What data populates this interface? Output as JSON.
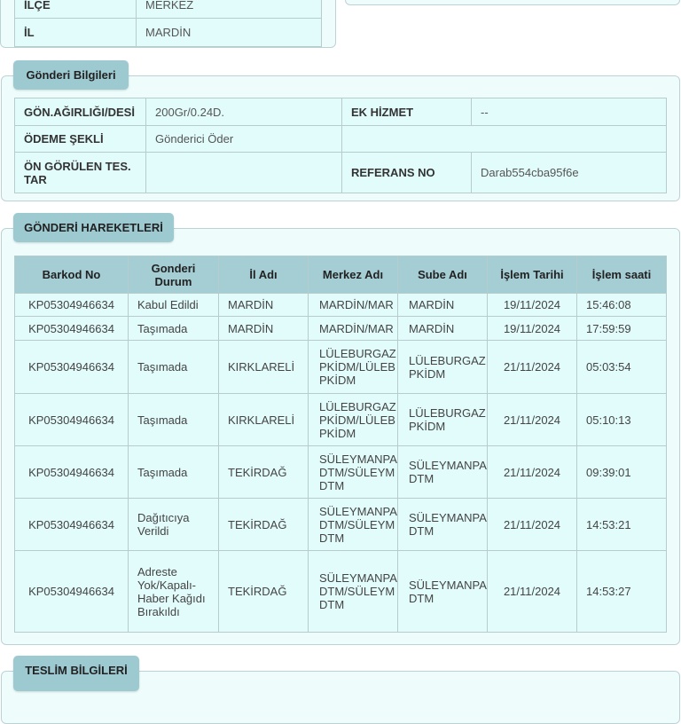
{
  "address_panel": {
    "rows": [
      {
        "label": "İLÇE",
        "value": "MERKEZ"
      },
      {
        "label": "İL",
        "value": "MARDİN"
      }
    ]
  },
  "shipment_info": {
    "title": "Gönderi Bilgileri",
    "weight_label": "GÖN.AĞIRLIĞI/DESİ",
    "weight_value": "200Gr/0.24D.",
    "extra_service_label": "EK HİZMET",
    "extra_service_value": "--",
    "payment_label": "ÖDEME ŞEKLİ",
    "payment_value": "Gönderici Öder",
    "estimated_date_label": "ÖN GÖRÜLEN TES. TAR",
    "estimated_date_value": "",
    "reference_label": "REFERANS NO",
    "reference_value": "Darab554cba95f6e"
  },
  "movements": {
    "title": "GÖNDERİ HAREKETLERİ",
    "columns": [
      "Barkod No",
      "Gonderi Durum",
      "İl Adı",
      "Merkez Adı",
      "Sube Adı",
      "İşlem Tarihi",
      "İşlem saati"
    ],
    "rows": [
      [
        "KP05304946634",
        "Kabul Edildi",
        "MARDİN",
        "MARDİN/MAR",
        "MARDİN",
        "19/11/2024",
        "15:46:08"
      ],
      [
        "KP05304946634",
        "Taşımada",
        "MARDİN",
        "MARDİN/MAR",
        "MARDİN",
        "19/11/2024",
        "17:59:59"
      ],
      [
        "KP05304946634",
        "Taşımada",
        "KIRKLARELİ",
        "LÜLEBURGAZ PKİDM/LÜLEB PKİDM",
        "LÜLEBURGAZ PKİDM",
        "21/11/2024",
        "05:03:54"
      ],
      [
        "KP05304946634",
        "Taşımada",
        "KIRKLARELİ",
        "LÜLEBURGAZ PKİDM/LÜLEB PKİDM",
        "LÜLEBURGAZ PKİDM",
        "21/11/2024",
        "05:10:13"
      ],
      [
        "KP05304946634",
        "Taşımada",
        "TEKİRDAĞ",
        "SÜLEYMANPA DTM/SÜLEYM DTM",
        "SÜLEYMANPA DTM",
        "21/11/2024",
        "09:39:01"
      ],
      [
        "KP05304946634",
        "Dağıtıcıya Verildi",
        "TEKİRDAĞ",
        "SÜLEYMANPA DTM/SÜLEYM DTM",
        "SÜLEYMANPA DTM",
        "21/11/2024",
        "14:53:21"
      ],
      [
        "KP05304946634",
        "Adreste Yok/Kapalı-Haber Kağıdı Bırakıldı",
        "TEKİRDAĞ",
        "SÜLEYMANPA DTM/SÜLEYM DTM",
        "SÜLEYMANPA DTM",
        "21/11/2024",
        "14:53:27"
      ]
    ]
  },
  "delivery_info": {
    "title": "TESLİM BİLGİLERİ"
  }
}
